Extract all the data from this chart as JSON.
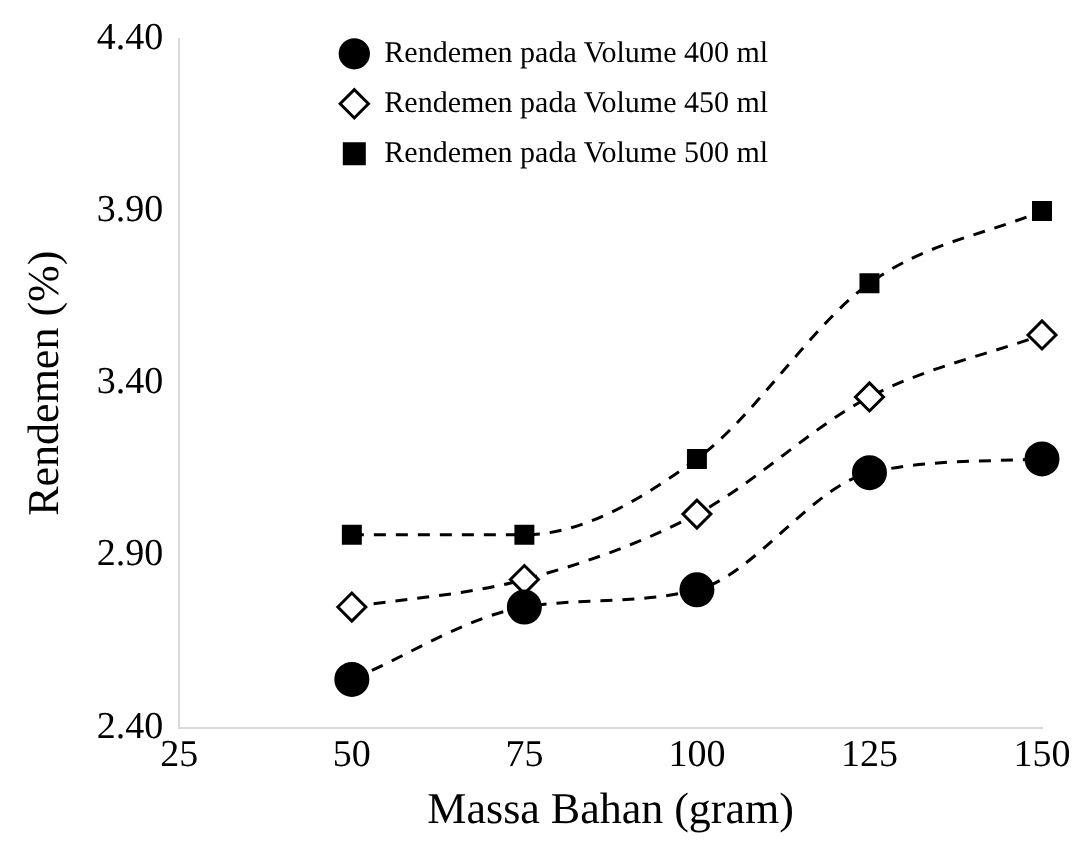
{
  "chart_data": {
    "type": "line",
    "xlabel": "Massa Bahan (gram)",
    "ylabel": "Rendemen (%)",
    "x": [
      50,
      75,
      100,
      125,
      150
    ],
    "series": [
      {
        "name": "Rendemen pada Volume 400 ml",
        "color": "#000000",
        "marker": "circle",
        "values": [
          2.54,
          2.75,
          2.8,
          3.14,
          3.18
        ]
      },
      {
        "name": "Rendemen pada Volume 450 ml",
        "color": "#000000",
        "marker": "diamond",
        "values": [
          2.75,
          2.83,
          3.02,
          3.36,
          3.54
        ]
      },
      {
        "name": "Rendemen pada Volume 500 ml",
        "color": "#000000",
        "marker": "square",
        "values": [
          2.96,
          2.96,
          3.18,
          3.69,
          3.9
        ]
      }
    ],
    "xlim": [
      25,
      150
    ],
    "xticks": [
      25,
      50,
      75,
      100,
      125,
      150
    ],
    "ylim": [
      2.4,
      4.4
    ],
    "yticks": [
      {
        "value": 2.4,
        "label": "2.40"
      },
      {
        "value": 2.9,
        "label": "2.90"
      },
      {
        "value": 3.4,
        "label": "3.40"
      },
      {
        "value": 3.9,
        "label": "3.90"
      },
      {
        "value": 4.4,
        "label": "4.40"
      }
    ],
    "grid": false,
    "legend": "top left",
    "line_style": "dashed"
  }
}
